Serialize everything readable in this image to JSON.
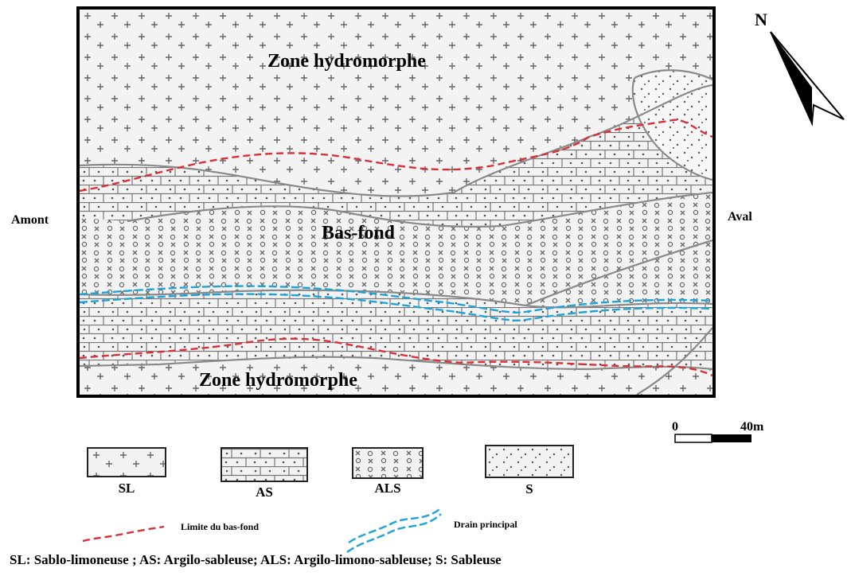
{
  "map": {
    "zone_top": "Zone hydromorphe",
    "zone_bottom": "Zone hydromorphe",
    "center": "Bas-fond",
    "left_side": "Amont",
    "right_side": "Aval",
    "north": "N"
  },
  "scale": {
    "start": "0",
    "end": "40m"
  },
  "legend": {
    "items": [
      {
        "code": "SL",
        "pattern": "plus"
      },
      {
        "code": "AS",
        "pattern": "brick"
      },
      {
        "code": "ALS",
        "pattern": "xo"
      },
      {
        "code": "S",
        "pattern": "dots"
      }
    ],
    "limit_label": "Limite du bas-fond",
    "drain_label": "Drain principal",
    "limit_color": "#d9303a",
    "drain_color": "#1fa3d8"
  },
  "footnote": "SL: Sablo-limoneuse ; AS: Argilo-sableuse; ALS: Argilo-limono-sableuse; S: Sableuse"
}
